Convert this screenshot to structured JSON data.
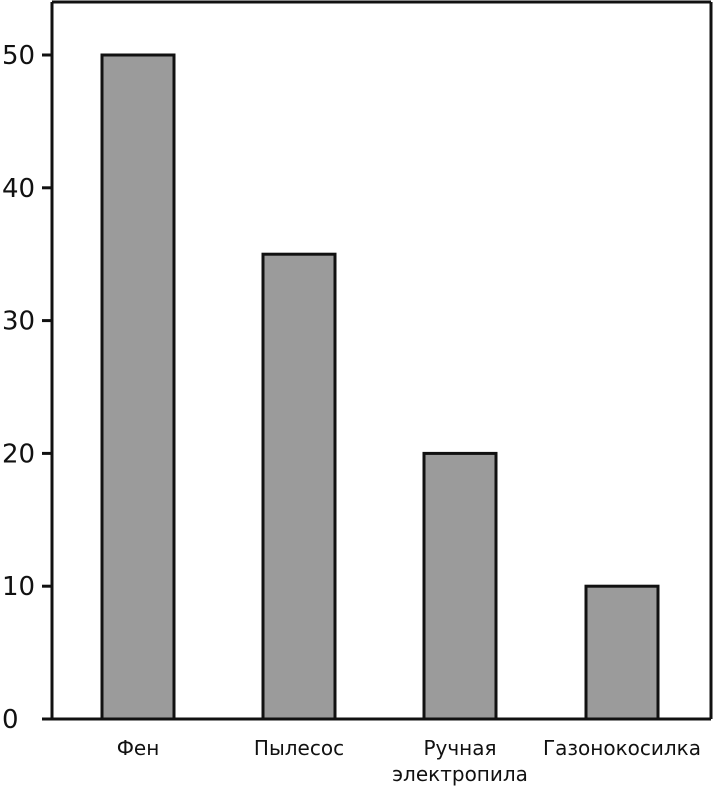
{
  "chart_data": {
    "type": "bar",
    "categories": [
      [
        "Фен"
      ],
      [
        "Пылесос"
      ],
      [
        "Ручная",
        "электропила"
      ],
      [
        "Газонокосилка"
      ]
    ],
    "values": [
      50,
      35,
      20,
      10
    ],
    "ylim": [
      0,
      50
    ],
    "yticks": [
      "0",
      "10",
      "20",
      "30",
      "40",
      "50"
    ],
    "grid": false,
    "colors": {
      "bar_fill": "#9b9b9b",
      "bar_stroke": "#111111",
      "axis": "#111111"
    }
  }
}
